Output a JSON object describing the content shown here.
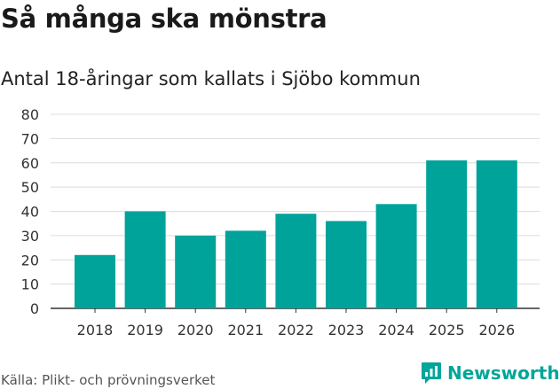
{
  "header": {
    "title": "Så många ska mönstra",
    "subtitle": "Antal 18-åringar som kallats i Sjöbo kommun"
  },
  "footer": {
    "source": "Källa: Plikt- och prövningsverket",
    "brand": "Newsworthy"
  },
  "colors": {
    "bar": "#00a39a",
    "grid": "#dcdcdc",
    "axis": "#333333",
    "brand": "#00a69a"
  },
  "chart_data": {
    "type": "bar",
    "title": "Så många ska mönstra",
    "subtitle": "Antal 18-åringar som kallats i Sjöbo kommun",
    "categories": [
      "2018",
      "2019",
      "2020",
      "2021",
      "2022",
      "2023",
      "2024",
      "2025",
      "2026"
    ],
    "values": [
      22,
      40,
      30,
      32,
      39,
      36,
      43,
      61,
      61
    ],
    "xlabel": "",
    "ylabel": "",
    "ylim": [
      0,
      80
    ],
    "yticks": [
      0,
      10,
      20,
      30,
      40,
      50,
      60,
      70,
      80
    ],
    "grid": true,
    "legend": "none"
  }
}
